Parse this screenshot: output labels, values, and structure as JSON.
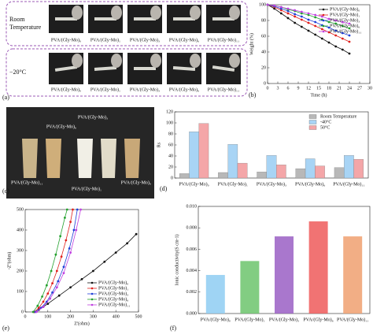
{
  "panel_labels": [
    "(a)",
    "(b)",
    "(c)",
    "(d)",
    "(e)",
    "(f)"
  ],
  "panel_a": {
    "rows": [
      {
        "label": [
          "Room",
          "Temperature"
        ],
        "captions": [
          "PVA/(Gly-Mo)₀",
          "PVA/(Gly-Mo)₁",
          "PVA/(Gly-Mo)₃",
          "PVA/(Gly-Mo)₆",
          "PVA/(Gly-Mo)₁₁"
        ]
      },
      {
        "label": [
          "−20°C"
        ],
        "captions": [
          "PVA/(Gly-Mo)₀",
          "PVA/(Gly-Mo)₁",
          "PVA/(Gly-Mo)₃",
          "PVA/(Gly-Mo)₆",
          "PVA/(Gly-Mo)₁₁"
        ]
      }
    ]
  },
  "panel_c": {
    "labels": [
      "PVA/(Gly-Mo)₃",
      "PVA/(Gly-Mo)₆",
      "PVA/(Gly-Mo)₁₁",
      "PVA/(Gly-Mo)₁",
      "PVA/(Gly-Mo)₀"
    ]
  },
  "chart_data": [
    {
      "type": "line",
      "xlabel": "Time (h)",
      "ylabel": "Weight (%)",
      "x": [
        0,
        2,
        4,
        6,
        8,
        10,
        12,
        14,
        16,
        18,
        20,
        22,
        24
      ],
      "xlim": [
        0,
        30
      ],
      "xticks": [
        0,
        3,
        6,
        9,
        12,
        15,
        18,
        21,
        24,
        27,
        30
      ],
      "ylim": [
        0,
        100
      ],
      "yticks": [
        0,
        20,
        40,
        60,
        80,
        100
      ],
      "legend": "upper right",
      "series": [
        {
          "name": "PVA/(Gly-Mo)₀",
          "color": "#111111",
          "values": [
            100,
            95,
            89,
            83,
            77,
            72,
            67,
            62,
            57,
            52,
            47,
            43,
            38
          ]
        },
        {
          "name": "PVA/(Gly-Mo)₁",
          "color": "#e0201c",
          "values": [
            100,
            97,
            93,
            89,
            85,
            81,
            77,
            73,
            69,
            65,
            61,
            57,
            53
          ]
        },
        {
          "name": "PVA/(Gly-Mo)₃",
          "color": "#1f3fd8",
          "values": [
            100,
            98,
            95,
            92,
            88,
            85,
            81,
            78,
            74,
            71,
            67,
            64,
            61
          ]
        },
        {
          "name": "PVA/(Gly-Mo)₆",
          "color": "#22a02c",
          "values": [
            100,
            99,
            97,
            94,
            92,
            89,
            87,
            84,
            81,
            78,
            76,
            73,
            70
          ]
        },
        {
          "name": "PVA/(Gly-Mo)₁₁",
          "color": "#c040e0",
          "values": [
            100,
            99,
            97,
            95,
            93,
            91,
            89,
            87,
            85,
            82,
            80,
            78,
            76
          ]
        }
      ]
    },
    {
      "type": "bar",
      "ylabel": "Rs",
      "categories": [
        "PVA/(Gly-Mo)₀",
        "PVA/(Gly-Mo)₁",
        "PVA/(Gly-Mo)₃",
        "PVA/(Gly-Mo)₆",
        "PVA/(Gly-Mo)₁₁"
      ],
      "ylim": [
        0,
        120
      ],
      "yticks": [
        0,
        20,
        40,
        60,
        80,
        100,
        120
      ],
      "legend": "upper right",
      "series": [
        {
          "name": "Room Temperature",
          "color": "#b8b8b8",
          "values": [
            8,
            10,
            11,
            17,
            19
          ]
        },
        {
          "name": "-40°C",
          "color": "#a8d4f5",
          "values": [
            84,
            61,
            41,
            35,
            41
          ]
        },
        {
          "name": "50°C",
          "color": "#f4a6a8",
          "values": [
            99,
            27,
            24,
            22,
            34
          ]
        }
      ]
    },
    {
      "type": "line",
      "xlabel": "Z'(ohm)",
      "ylabel": "-Z''(ohm)",
      "xlim": [
        0,
        500
      ],
      "xticks": [
        0,
        100,
        200,
        300,
        400,
        500
      ],
      "ylim": [
        0,
        500
      ],
      "yticks": [
        0,
        100,
        200,
        300,
        400,
        500
      ],
      "legend": "lower right",
      "series": [
        {
          "name": "PVA/(Gly-Mo)₀",
          "color": "#111111",
          "x": [
            40,
            60,
            80,
            100,
            150,
            200,
            250,
            300,
            350,
            400,
            450,
            490
          ],
          "values": [
            0,
            10,
            25,
            40,
            80,
            120,
            160,
            200,
            245,
            290,
            335,
            380
          ]
        },
        {
          "name": "PVA/(Gly-Mo)₁",
          "color": "#e0201c",
          "x": [
            40,
            60,
            80,
            100,
            120,
            140,
            160,
            180,
            200,
            210
          ],
          "values": [
            0,
            20,
            50,
            90,
            140,
            200,
            270,
            350,
            440,
            500
          ]
        },
        {
          "name": "PVA/(Gly-Mo)₃",
          "color": "#1f3fd8",
          "x": [
            45,
            70,
            95,
            120,
            145,
            170,
            195,
            215,
            230
          ],
          "values": [
            0,
            20,
            50,
            95,
            150,
            220,
            310,
            400,
            500
          ]
        },
        {
          "name": "PVA/(Gly-Mo)₆",
          "color": "#22a02c",
          "x": [
            35,
            55,
            75,
            95,
            115,
            135,
            155,
            175,
            185
          ],
          "values": [
            0,
            30,
            75,
            130,
            200,
            280,
            370,
            460,
            500
          ]
        },
        {
          "name": "PVA/(Gly-Mo)₁₁",
          "color": "#c040e0",
          "x": [
            50,
            80,
            110,
            140,
            170,
            200,
            225,
            245
          ],
          "values": [
            0,
            25,
            65,
            120,
            190,
            290,
            400,
            500
          ]
        }
      ]
    },
    {
      "type": "bar",
      "ylabel": "Ionic conductivity(S cm-1)",
      "categories": [
        "PVA/(Gly-Mo)₀",
        "PVA/(Gly-Mo)₁",
        "PVA/(Gly-Mo)₃",
        "PVA/(Gly-Mo)₆",
        "PVA/(Gly-Mo)₁₁"
      ],
      "values": [
        0.0036,
        0.0049,
        0.0072,
        0.0086,
        0.0072
      ],
      "colors": [
        "#8ecdf2",
        "#6cc46c",
        "#9a5fc4",
        "#ee5b5b",
        "#f0a070"
      ],
      "ylim": [
        0,
        0.01
      ],
      "yticks": [
        {
          "value": 0,
          "label": "0.000"
        },
        {
          "value": 0.002,
          "label": "0.002"
        },
        {
          "value": 0.004,
          "label": "0.004"
        },
        {
          "value": 0.006,
          "label": "0.006"
        },
        {
          "value": 0.008,
          "label": "0.008"
        },
        {
          "value": 0.01,
          "label": "0.010"
        }
      ]
    }
  ]
}
